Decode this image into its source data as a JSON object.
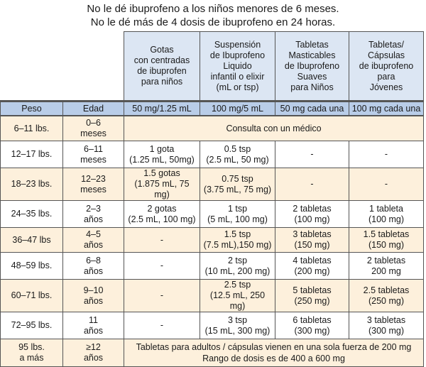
{
  "notes": [
    "No le dé ibuprofeno a los niños menores de 6 meses.",
    "No le dé más de 4 dosis de ibuprofeno en 24 horas."
  ],
  "products": [
    {
      "name_lines": [
        "Gotas",
        "con centradas",
        "de ibuprofen",
        "para niños"
      ],
      "unit": "50 mg/1.25 mL"
    },
    {
      "name_lines": [
        "Suspensión",
        "de Ibuprofeno",
        "Liquido",
        "infantil o elixir",
        "(mL or tsp)"
      ],
      "unit": "100 mg/5 mL"
    },
    {
      "name_lines": [
        "Tabletas",
        "Masticables",
        "de Ibuprofeno",
        "Suaves",
        "para Niños"
      ],
      "unit": "50 mg cada una"
    },
    {
      "name_lines": [
        "Tabletas/",
        "Cápsulas",
        "de ibuprofeno",
        "para",
        "Jóvenes"
      ],
      "unit": "100 mg cada una"
    }
  ],
  "col_headers": {
    "weight": "Peso",
    "age": "Edad"
  },
  "rows": [
    {
      "weight": [
        "6–11 lbs."
      ],
      "age": [
        "0–6",
        "meses"
      ],
      "merged": [
        "Consulta con un médico"
      ]
    },
    {
      "weight": [
        "12–17 lbs."
      ],
      "age": [
        "6–11",
        "meses"
      ],
      "doses": [
        [
          "1 gota",
          "(1.25 mL, 50mg)"
        ],
        [
          "0.5 tsp",
          "(2.5 mL, 50 mg)"
        ],
        [
          "-"
        ],
        [
          "-"
        ]
      ]
    },
    {
      "weight": [
        "18–23 lbs."
      ],
      "age": [
        "12–23",
        "meses"
      ],
      "doses": [
        [
          "1.5 gotas",
          "(1.875 mL, 75 mg)"
        ],
        [
          "0.75 tsp",
          "(3.75 mL, 75 mg)"
        ],
        [
          "-"
        ],
        [
          "-"
        ]
      ]
    },
    {
      "weight": [
        "24–35 lbs."
      ],
      "age": [
        "2–3",
        "años"
      ],
      "doses": [
        [
          "2 gotas",
          "(2.5 mL, 100 mg)"
        ],
        [
          "1 tsp",
          "(5 mL, 100 mg)"
        ],
        [
          "2 tabletas",
          "(100 mg)"
        ],
        [
          "1 tableta",
          "(100 mg)"
        ]
      ]
    },
    {
      "weight": [
        "36–47 lbs"
      ],
      "age": [
        "4–5",
        "años"
      ],
      "doses": [
        [
          "-"
        ],
        [
          "1.5 tsp",
          "(7.5 mL),150 mg)"
        ],
        [
          "3 tabletas",
          "(150 mg)"
        ],
        [
          "1.5 tabletas",
          "(150 mg)"
        ]
      ]
    },
    {
      "weight": [
        "48–59 lbs."
      ],
      "age": [
        "6–8",
        "años"
      ],
      "doses": [
        [
          "-"
        ],
        [
          "2 tsp",
          "(10 mL, 200 mg)"
        ],
        [
          "4 tabletas",
          "(200 mg)"
        ],
        [
          "2 tabletas",
          "200 mg"
        ]
      ]
    },
    {
      "weight": [
        "60–71 lbs."
      ],
      "age": [
        "9–10",
        "años"
      ],
      "doses": [
        [
          "-"
        ],
        [
          "2.5 tsp",
          "(12.5 mL, 250 mg)"
        ],
        [
          "5 tabletas",
          "(250 mg)"
        ],
        [
          "2.5 tabletas",
          "(250 mg)"
        ]
      ]
    },
    {
      "weight": [
        "72–95 lbs."
      ],
      "age": [
        "11",
        "años"
      ],
      "doses": [
        [
          "-"
        ],
        [
          "3 tsp",
          "(15 mL, 300 mg)"
        ],
        [
          "6 tabletas",
          "(300 mg)"
        ],
        [
          "3 tabletas",
          "(300 mg)"
        ]
      ]
    },
    {
      "weight": [
        "95 lbs.",
        "a más"
      ],
      "age": [
        "≥12",
        "años"
      ],
      "merged": [
        "Tabletas para adultos / cápsulas vienen en una sola fuerza de 200 mg",
        "Rango de dosis es de 400 a 600 mg"
      ]
    }
  ],
  "colors": {
    "header_blue": "#dce6f3",
    "unit_blue": "#b9cde8",
    "cream": "#fdf0dc",
    "white": "#ffffff"
  }
}
